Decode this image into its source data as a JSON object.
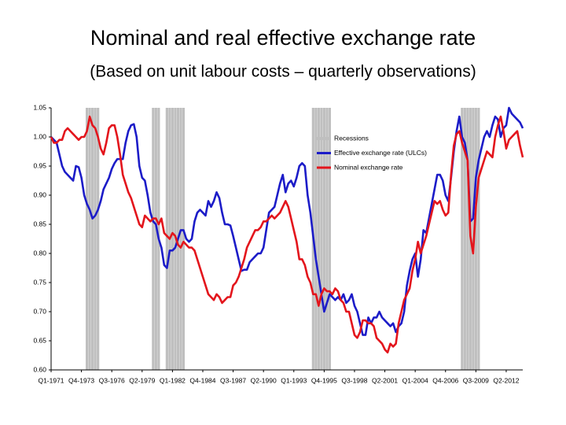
{
  "chart_data": {
    "type": "line",
    "title": "Nominal and real effective exchange rate",
    "subtitle": "(Based on unit labour costs – quarterly observations)",
    "categories": [
      "Q1-1971",
      null,
      null,
      null,
      null,
      null,
      null,
      null,
      null,
      null,
      null,
      "Q4-1973",
      null,
      null,
      null,
      null,
      null,
      null,
      null,
      null,
      null,
      null,
      "Q3-1976",
      null,
      null,
      null,
      null,
      null,
      null,
      null,
      null,
      null,
      null,
      "Q2-1979",
      null,
      null,
      null,
      null,
      null,
      null,
      null,
      null,
      null,
      null,
      "Q1-1982",
      null,
      null,
      null,
      null,
      null,
      null,
      null,
      null,
      null,
      null,
      "Q4-1984",
      null,
      null,
      null,
      null,
      null,
      null,
      null,
      null,
      null,
      null,
      "Q3-1987",
      null,
      null,
      null,
      null,
      null,
      null,
      null,
      null,
      null,
      null,
      "Q2-1990",
      null,
      null,
      null,
      null,
      null,
      null,
      null,
      null,
      null,
      null,
      "Q1-1993",
      null,
      null,
      null,
      null,
      null,
      null,
      null,
      null,
      null,
      null,
      "Q4-1995",
      null,
      null,
      null,
      null,
      null,
      null,
      null,
      null,
      null,
      null,
      "Q3-1998",
      null,
      null,
      null,
      null,
      null,
      null,
      null,
      null,
      null,
      null,
      "Q2-2001",
      null,
      null,
      null,
      null,
      null,
      null,
      null,
      null,
      null,
      null,
      "Q1-2004",
      null,
      null,
      null,
      null,
      null,
      null,
      null,
      null,
      null,
      null,
      "Q4-2006",
      null,
      null,
      null,
      null,
      null,
      null,
      null,
      null,
      null,
      null,
      "Q3-2009",
      null,
      null,
      null,
      null,
      null,
      null,
      null,
      null,
      null,
      null,
      "Q2-2012",
      null,
      null,
      null,
      null,
      null,
      null
    ],
    "series": [
      {
        "name": "Recessions",
        "type": "bar",
        "color": "#bfbfbf",
        "values": [
          null,
          null,
          null,
          null,
          null,
          null,
          null,
          null,
          null,
          null,
          null,
          null,
          null,
          1.05,
          1.05,
          1.05,
          1.05,
          1.05,
          null,
          null,
          null,
          null,
          null,
          null,
          null,
          null,
          null,
          null,
          null,
          null,
          null,
          null,
          null,
          null,
          null,
          null,
          null,
          1.05,
          1.05,
          1.05,
          null,
          null,
          1.05,
          1.05,
          1.05,
          1.05,
          1.05,
          1.05,
          1.05,
          null,
          null,
          null,
          null,
          null,
          null,
          null,
          null,
          null,
          null,
          null,
          null,
          null,
          null,
          null,
          null,
          null,
          null,
          null,
          null,
          null,
          null,
          null,
          null,
          null,
          null,
          null,
          null,
          null,
          null,
          null,
          null,
          null,
          null,
          null,
          null,
          null,
          null,
          null,
          null,
          null,
          null,
          null,
          null,
          null,
          null,
          1.05,
          1.05,
          1.05,
          1.05,
          1.05,
          1.05,
          1.05,
          null,
          null,
          null,
          null,
          null,
          null,
          null,
          null,
          null,
          null,
          null,
          null,
          null,
          null,
          null,
          null,
          null,
          null,
          null,
          null,
          null,
          null,
          null,
          null,
          null,
          null,
          null,
          null,
          null,
          null,
          null,
          null,
          null,
          null,
          null,
          null,
          null,
          null,
          null,
          null,
          null,
          null,
          null,
          null,
          null,
          null,
          null,
          1.05,
          1.05,
          1.05,
          1.05,
          1.05,
          1.05,
          1.05,
          null,
          null,
          null,
          null,
          null,
          null,
          null,
          null,
          null,
          null,
          null,
          null,
          null,
          null,
          null,
          null
        ]
      },
      {
        "name": "Effective exchange rate (ULCs)",
        "type": "line",
        "color": "#1c1cc8",
        "values": [
          1.0,
          0.995,
          0.99,
          0.97,
          0.95,
          0.94,
          0.935,
          0.93,
          0.925,
          0.95,
          0.948,
          0.93,
          0.9,
          0.885,
          0.875,
          0.86,
          0.865,
          0.875,
          0.89,
          0.91,
          0.92,
          0.93,
          0.945,
          0.955,
          0.962,
          0.962,
          0.962,
          0.99,
          1.01,
          1.02,
          1.022,
          1.0,
          0.95,
          0.93,
          0.925,
          0.9,
          0.87,
          0.855,
          0.85,
          0.825,
          0.81,
          0.78,
          0.775,
          0.805,
          0.805,
          0.81,
          0.825,
          0.84,
          0.84,
          0.825,
          0.82,
          0.825,
          0.855,
          0.87,
          0.875,
          0.87,
          0.865,
          0.89,
          0.88,
          0.89,
          0.905,
          0.895,
          0.87,
          0.85,
          0.85,
          0.848,
          0.83,
          0.81,
          0.79,
          0.77,
          0.772,
          0.772,
          0.785,
          0.79,
          0.795,
          0.8,
          0.8,
          0.81,
          0.84,
          0.87,
          0.875,
          0.88,
          0.9,
          0.92,
          0.935,
          0.905,
          0.92,
          0.925,
          0.915,
          0.93,
          0.95,
          0.955,
          0.95,
          0.9,
          0.87,
          0.83,
          0.79,
          0.76,
          0.73,
          0.7,
          0.715,
          0.73,
          0.725,
          0.72,
          0.725,
          0.72,
          0.73,
          0.715,
          0.72,
          0.73,
          0.71,
          0.7,
          0.68,
          0.66,
          0.66,
          0.69,
          0.68,
          0.69,
          0.69,
          0.7,
          0.69,
          0.685,
          0.68,
          0.675,
          0.68,
          0.665,
          0.675,
          0.68,
          0.7,
          0.745,
          0.77,
          0.79,
          0.8,
          0.76,
          0.79,
          0.84,
          0.835,
          0.86,
          0.885,
          0.91,
          0.935,
          0.935,
          0.925,
          0.9,
          0.89,
          0.93,
          0.975,
          1.01,
          1.035,
          1.0,
          0.99,
          0.96,
          0.855,
          0.86,
          0.93,
          0.96,
          0.98,
          1.0,
          1.01,
          1.0,
          1.02,
          1.035,
          1.03,
          1.0,
          1.015,
          1.02,
          1.05,
          1.04,
          1.035,
          1.03,
          1.025,
          1.015
        ]
      },
      {
        "name": "Nominal exchange rate",
        "type": "line",
        "color": "#e3151c",
        "values": [
          1.0,
          0.99,
          0.99,
          0.995,
          0.995,
          1.01,
          1.015,
          1.01,
          1.005,
          1.0,
          0.995,
          1.0,
          1.0,
          1.01,
          1.035,
          1.02,
          1.015,
          1.0,
          0.98,
          0.97,
          0.99,
          1.015,
          1.02,
          1.02,
          1.0,
          0.97,
          0.935,
          0.92,
          0.905,
          0.895,
          0.88,
          0.865,
          0.85,
          0.845,
          0.865,
          0.86,
          0.855,
          0.86,
          0.86,
          0.85,
          0.86,
          0.835,
          0.83,
          0.825,
          0.835,
          0.83,
          0.815,
          0.81,
          0.82,
          0.815,
          0.81,
          0.81,
          0.805,
          0.79,
          0.775,
          0.76,
          0.745,
          0.73,
          0.725,
          0.72,
          0.73,
          0.725,
          0.715,
          0.72,
          0.725,
          0.725,
          0.745,
          0.75,
          0.76,
          0.775,
          0.79,
          0.81,
          0.82,
          0.83,
          0.84,
          0.84,
          0.845,
          0.855,
          0.855,
          0.86,
          0.865,
          0.86,
          0.865,
          0.87,
          0.88,
          0.89,
          0.88,
          0.86,
          0.84,
          0.82,
          0.79,
          0.79,
          0.78,
          0.76,
          0.75,
          0.73,
          0.73,
          0.71,
          0.73,
          0.74,
          0.735,
          0.735,
          0.73,
          0.74,
          0.735,
          0.72,
          0.715,
          0.7,
          0.7,
          0.68,
          0.66,
          0.655,
          0.665,
          0.685,
          0.685,
          0.68,
          0.68,
          0.675,
          0.655,
          0.65,
          0.645,
          0.635,
          0.63,
          0.645,
          0.64,
          0.645,
          0.68,
          0.7,
          0.72,
          0.73,
          0.74,
          0.77,
          0.79,
          0.82,
          0.8,
          0.815,
          0.83,
          0.85,
          0.87,
          0.89,
          0.885,
          0.89,
          0.875,
          0.865,
          0.87,
          0.935,
          0.985,
          1.005,
          1.01,
          0.99,
          0.975,
          0.96,
          0.83,
          0.8,
          0.88,
          0.93,
          0.945,
          0.96,
          0.975,
          0.97,
          0.965,
          1.0,
          1.02,
          1.035,
          1.01,
          0.98,
          0.995,
          1.0,
          1.005,
          1.01,
          0.985,
          0.965
        ]
      }
    ],
    "ylim": [
      0.6,
      1.05
    ],
    "yticks": [
      {
        "value": 0.6,
        "label": "0.60"
      },
      0.65,
      {
        "value": 0.7,
        "label": "0.70"
      },
      0.75,
      {
        "value": 0.8,
        "label": "0.80"
      },
      0.85,
      {
        "value": 0.9,
        "label": "0.90"
      },
      0.95,
      {
        "value": 1.0,
        "label": "1.00"
      },
      1.05
    ],
    "grid": false,
    "legend": "upper right"
  }
}
